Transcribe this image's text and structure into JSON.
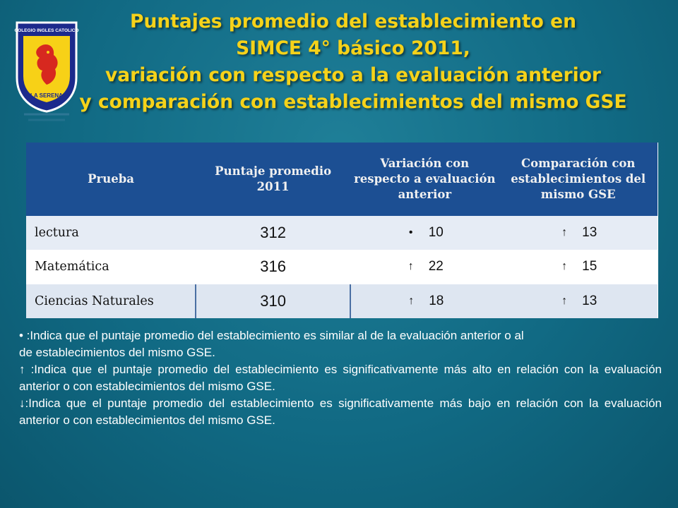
{
  "title": {
    "line1": "Puntajes promedio del establecimiento  en",
    "line2": "SIMCE 4° básico 2011,",
    "line3": "variación con respecto  a la evaluación anterior",
    "line4": "y comparación con establecimientos  del mismo GSE"
  },
  "logo": {
    "top_text": "COLEGIO INGLES CATOLICO",
    "bottom_text": "LA SERENA",
    "colors": {
      "blue": "#1c2a8c",
      "yellow": "#f7d117",
      "red": "#d7281f"
    }
  },
  "table": {
    "headers": [
      "Prueba",
      "Puntaje promedio 2011",
      "Variación con respecto  a evaluación anterior",
      "Comparación con establecimientos del mismo GSE"
    ],
    "rows": [
      {
        "prueba": "lectura",
        "puntaje": "312",
        "variacion_symbol": "•",
        "variacion": "10",
        "comparacion_symbol": "↑",
        "comparacion": "13"
      },
      {
        "prueba": "Matemática",
        "puntaje": "316",
        "variacion_symbol": "↑",
        "variacion": "22",
        "comparacion_symbol": "↑",
        "comparacion": "15"
      },
      {
        "prueba": "Ciencias  Naturales",
        "puntaje": "310",
        "variacion_symbol": "↑",
        "variacion": "18",
        "comparacion_symbol": "↑",
        "comparacion": "13"
      }
    ]
  },
  "legend": {
    "similar_line1": "• :Indica que el puntaje promedio del establecimiento  es similar al de la evaluación anterior o al",
    "similar_line2": "de establecimientos   del mismo GSE.",
    "higher": "↑ :Indica que el puntaje promedio del establecimiento  es significativamente más alto en relación con la evaluación anterior o con establecimientos   del mismo GSE.",
    "lower": "↓:Indica que el puntaje promedio del establecimiento  es significativamente más bajo en relación con la evaluación anterior o con establecimientos   del mismo GSE."
  }
}
